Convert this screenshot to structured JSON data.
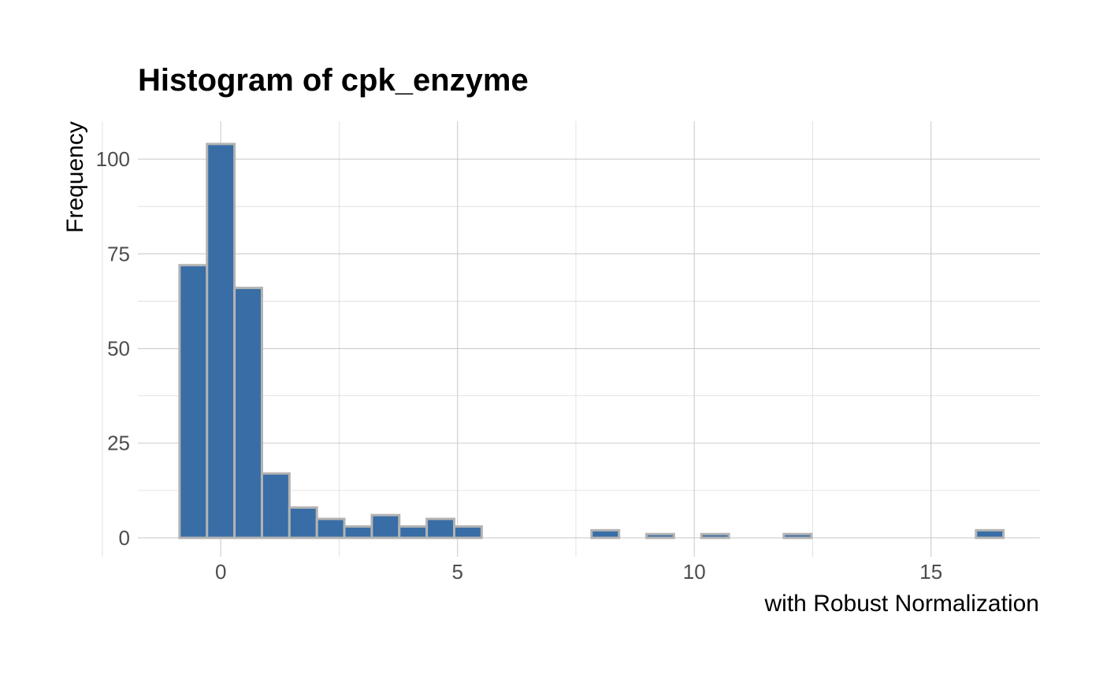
{
  "chart_data": {
    "type": "bar",
    "title": "Histogram of cpk_enzyme",
    "xlabel": "with Robust Normalization",
    "ylabel": "Frequency",
    "xlim": [
      -1.75,
      17.3
    ],
    "ylim": [
      -5,
      110
    ],
    "x_ticks": [
      0,
      5,
      10,
      15
    ],
    "y_ticks": [
      0,
      25,
      50,
      75,
      100
    ],
    "x_minor_ticks": [
      -2.5,
      2.5,
      7.5,
      12.5
    ],
    "y_minor_ticks": [
      12.5,
      37.5,
      62.5,
      87.5
    ],
    "grid": true,
    "bin_width": 0.58,
    "bins": [
      {
        "start": -0.87,
        "count": 72
      },
      {
        "start": -0.29,
        "count": 104
      },
      {
        "start": 0.29,
        "count": 66
      },
      {
        "start": 0.87,
        "count": 17
      },
      {
        "start": 1.45,
        "count": 8
      },
      {
        "start": 2.03,
        "count": 5
      },
      {
        "start": 2.61,
        "count": 3
      },
      {
        "start": 3.19,
        "count": 6
      },
      {
        "start": 3.77,
        "count": 3
      },
      {
        "start": 4.35,
        "count": 5
      },
      {
        "start": 4.93,
        "count": 3
      },
      {
        "start": 5.51,
        "count": 0
      },
      {
        "start": 6.09,
        "count": 0
      },
      {
        "start": 6.67,
        "count": 0
      },
      {
        "start": 7.25,
        "count": 0
      },
      {
        "start": 7.83,
        "count": 2
      },
      {
        "start": 8.41,
        "count": 0
      },
      {
        "start": 8.99,
        "count": 1
      },
      {
        "start": 9.57,
        "count": 0
      },
      {
        "start": 10.15,
        "count": 1
      },
      {
        "start": 10.73,
        "count": 0
      },
      {
        "start": 11.31,
        "count": 0
      },
      {
        "start": 11.89,
        "count": 1
      },
      {
        "start": 12.47,
        "count": 0
      },
      {
        "start": 13.05,
        "count": 0
      },
      {
        "start": 13.63,
        "count": 0
      },
      {
        "start": 14.21,
        "count": 0
      },
      {
        "start": 14.79,
        "count": 0
      },
      {
        "start": 15.37,
        "count": 0
      },
      {
        "start": 15.95,
        "count": 2
      }
    ],
    "colors": {
      "bar_fill": "#386da6",
      "bar_outline": "#b3b3b3",
      "grid": "#cccccc",
      "tick_text": "#4d4d4d"
    }
  }
}
